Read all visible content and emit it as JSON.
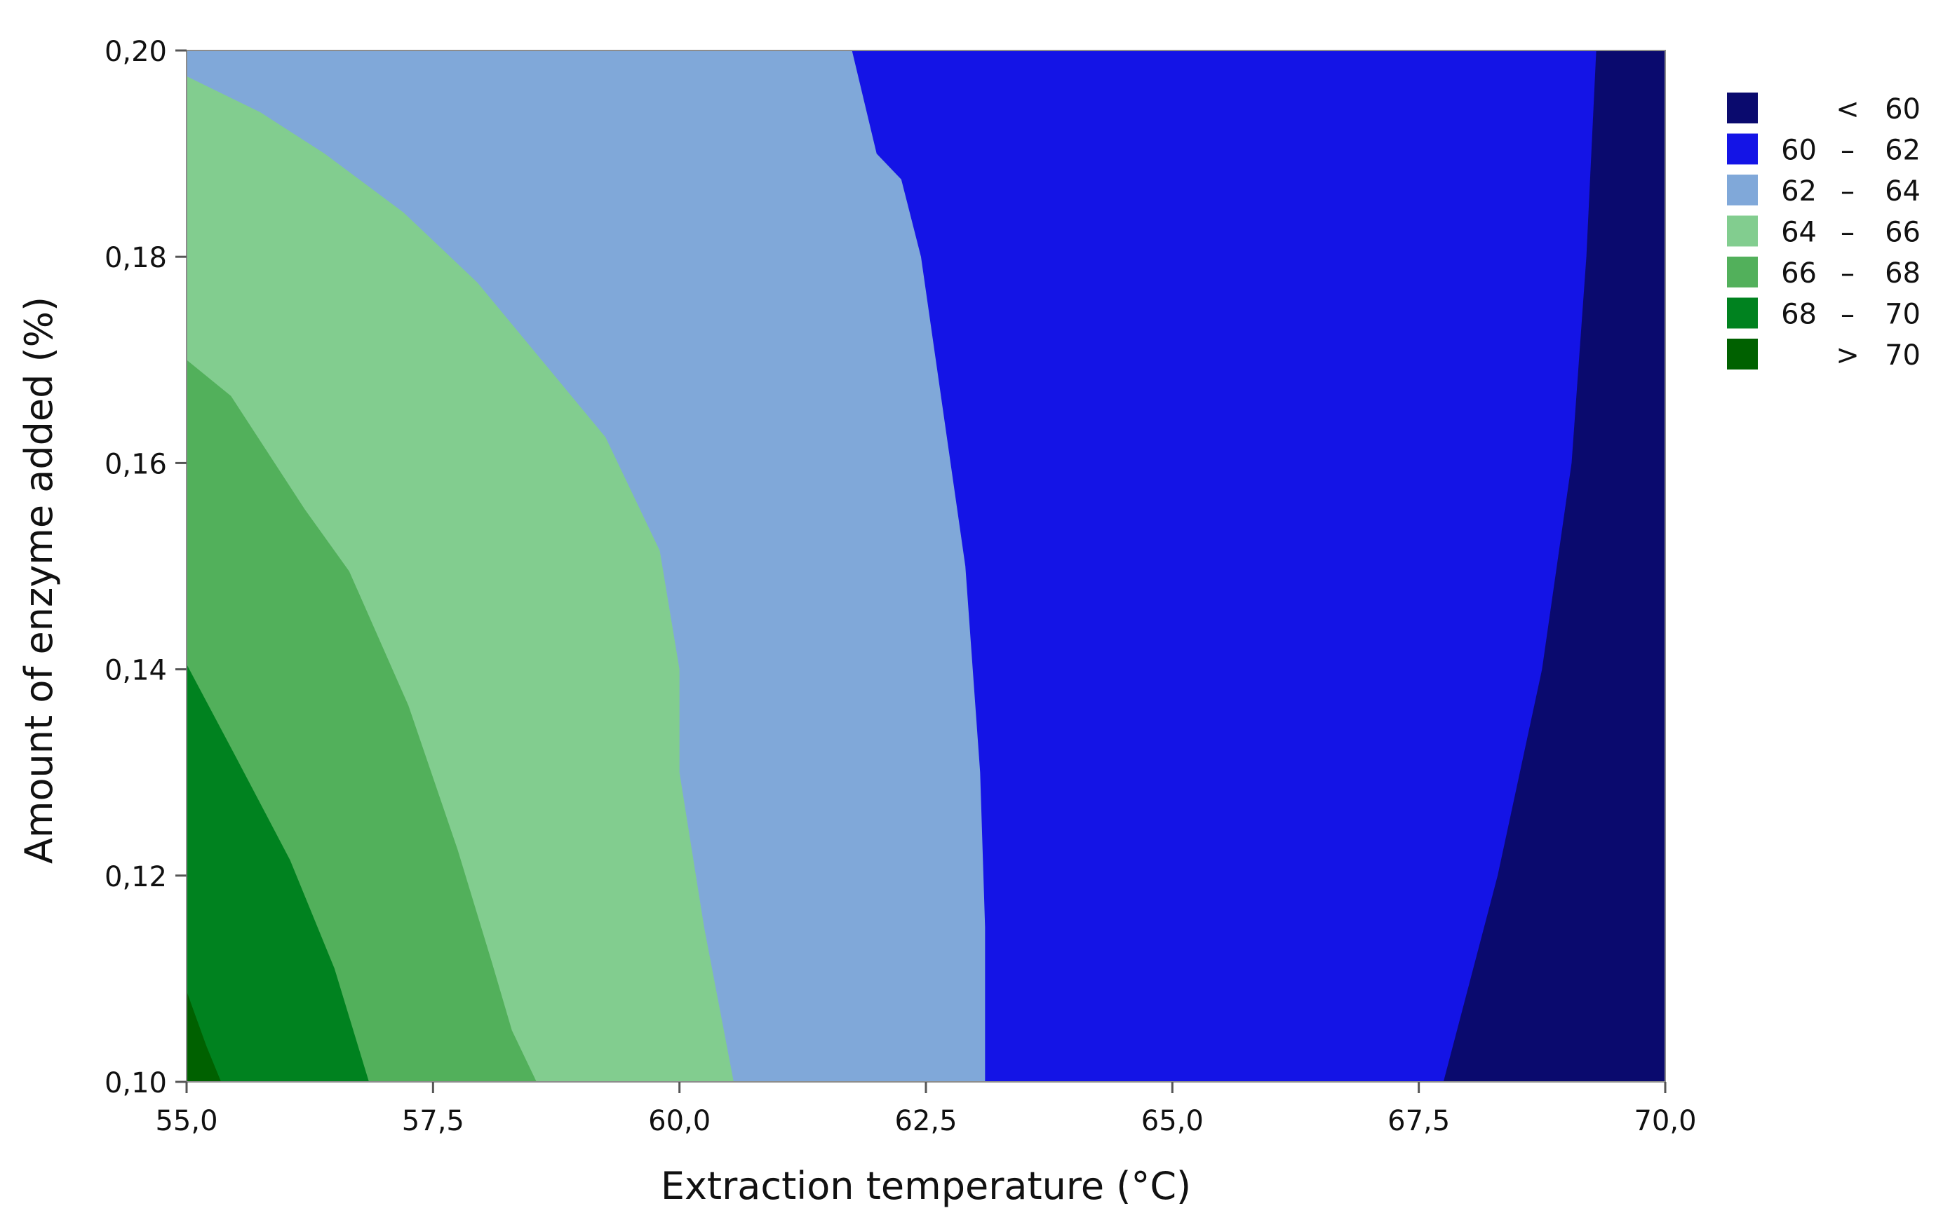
{
  "chart_data": {
    "type": "contour",
    "xlabel": "Extraction temperature (°C)",
    "ylabel": "Amount of enzyme added (%)",
    "xlim": [
      55.0,
      70.0
    ],
    "ylim": [
      0.1,
      0.2
    ],
    "x_ticks": [
      "55,0",
      "57,5",
      "60,0",
      "62,5",
      "65,0",
      "67,5",
      "70,0"
    ],
    "x_tick_values": [
      55.0,
      57.5,
      60.0,
      62.5,
      65.0,
      67.5,
      70.0
    ],
    "y_ticks": [
      "0,10",
      "0,12",
      "0,14",
      "0,16",
      "0,18",
      "0,20"
    ],
    "y_tick_values": [
      0.1,
      0.12,
      0.14,
      0.16,
      0.18,
      0.2
    ],
    "grid": false,
    "legend_position": "right",
    "legend": [
      {
        "low": "",
        "sep": "<",
        "high": "60",
        "color": "#0a0a6e"
      },
      {
        "low": "60",
        "sep": "–",
        "high": "62",
        "color": "#1414e6"
      },
      {
        "low": "62",
        "sep": "–",
        "high": "64",
        "color": "#80a8d9"
      },
      {
        "low": "64",
        "sep": "–",
        "high": "66",
        "color": "#82cd8f"
      },
      {
        "low": "66",
        "sep": "–",
        "high": "68",
        "color": "#52b05b"
      },
      {
        "low": "68",
        "sep": "–",
        "high": "70",
        "color": "#00821f"
      },
      {
        "low": "",
        "sep": ">",
        "high": "70",
        "color": "#006100"
      }
    ],
    "contour_boundaries": [
      {
        "between": "<60 | 60–62",
        "points": [
          [
            69.3,
            0.2
          ],
          [
            69.2,
            0.18
          ],
          [
            69.05,
            0.16
          ],
          [
            68.75,
            0.14
          ],
          [
            68.3,
            0.12
          ],
          [
            67.75,
            0.1
          ]
        ]
      },
      {
        "between": "60–62 | 62–64",
        "points": [
          [
            61.75,
            0.2
          ],
          [
            62.0,
            0.19
          ],
          [
            62.25,
            0.1875
          ],
          [
            62.45,
            0.18
          ],
          [
            62.6,
            0.17
          ],
          [
            62.9,
            0.15
          ],
          [
            63.05,
            0.13
          ],
          [
            63.1,
            0.115
          ],
          [
            63.1,
            0.1
          ]
        ]
      },
      {
        "between": "62–64 | 64–66",
        "points": [
          [
            55.0,
            0.1975
          ],
          [
            55.75,
            0.194
          ],
          [
            56.4,
            0.19
          ],
          [
            57.2,
            0.1843
          ],
          [
            57.95,
            0.1775
          ],
          [
            58.6,
            0.17
          ],
          [
            59.25,
            0.1625
          ],
          [
            59.8,
            0.1515
          ],
          [
            60.0,
            0.14
          ],
          [
            60.0,
            0.13
          ],
          [
            60.25,
            0.115
          ],
          [
            60.55,
            0.1
          ]
        ]
      },
      {
        "between": "64–66 | 66–68",
        "points": [
          [
            55.0,
            0.17
          ],
          [
            55.45,
            0.1665
          ],
          [
            56.2,
            0.1555
          ],
          [
            56.65,
            0.1495
          ],
          [
            57.25,
            0.1365
          ],
          [
            57.75,
            0.1225
          ],
          [
            58.1,
            0.1115
          ],
          [
            58.3,
            0.105
          ],
          [
            58.55,
            0.1
          ]
        ]
      },
      {
        "between": "66–68 | 68–70",
        "points": [
          [
            55.0,
            0.1405
          ],
          [
            55.5,
            0.1315
          ],
          [
            56.05,
            0.1215
          ],
          [
            56.5,
            0.111
          ],
          [
            56.85,
            0.1
          ]
        ]
      },
      {
        "between": "68–70 | >70",
        "points": [
          [
            55.0,
            0.1088
          ],
          [
            55.2,
            0.1035
          ],
          [
            55.35,
            0.1
          ]
        ]
      }
    ]
  }
}
